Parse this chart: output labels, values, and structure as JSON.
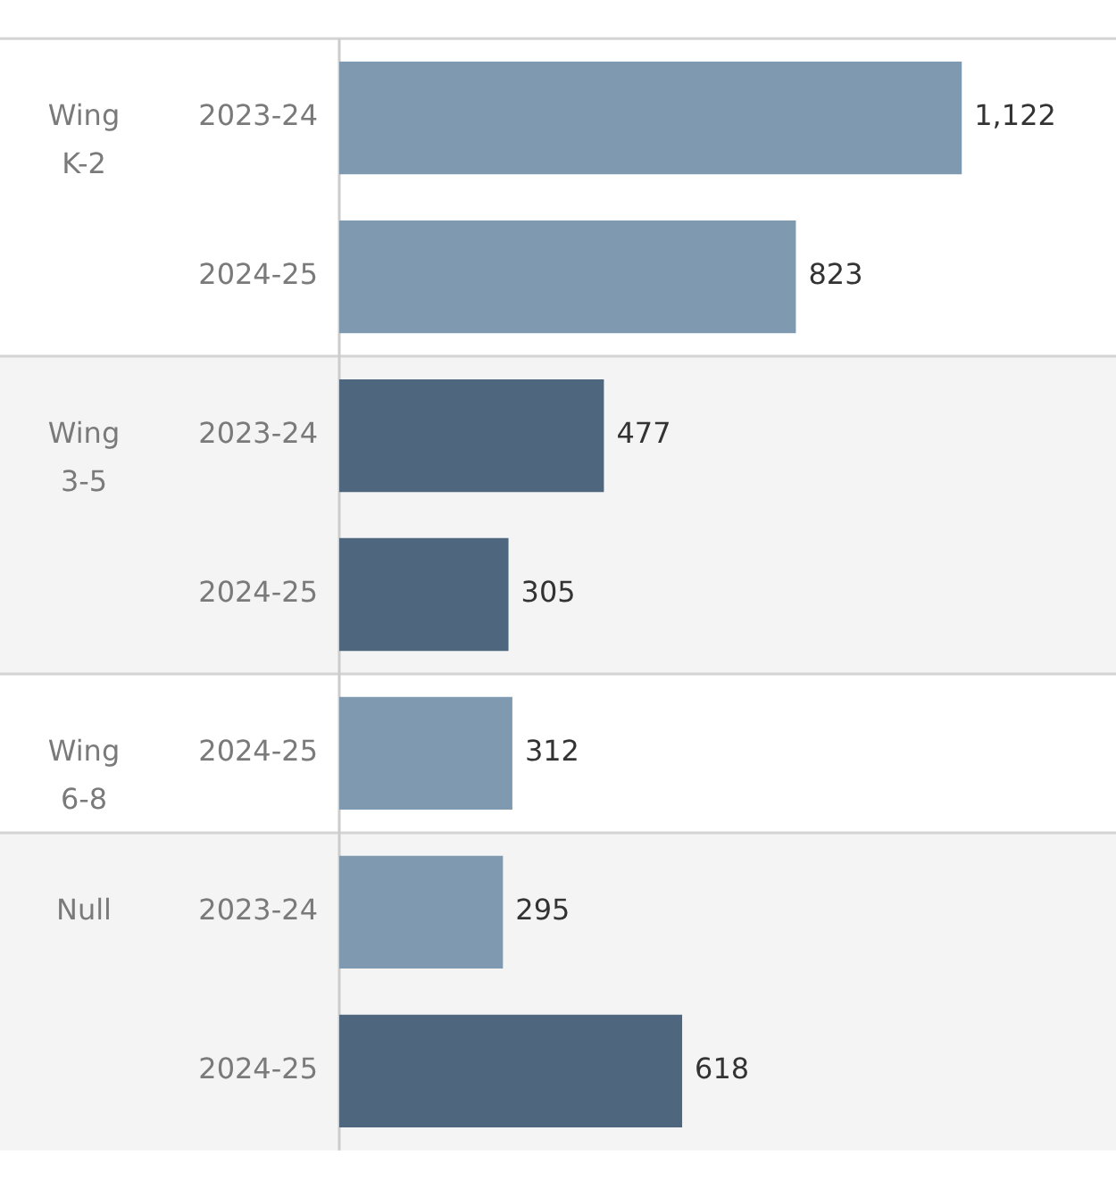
{
  "chart_data": {
    "type": "bar",
    "orientation": "horizontal",
    "categories": [
      "2023-24",
      "2024-25",
      "2023-24",
      "2024-25",
      "2024-25",
      "2023-24",
      "2024-25"
    ],
    "values": [
      1122,
      823,
      477,
      305,
      312,
      295,
      618
    ],
    "colors": [
      "#7f9ab0",
      "#7f9ab0",
      "#4e677f",
      "#4e677f",
      "#7f9ab0",
      "#7f9ab0",
      "#4e677f"
    ],
    "value_labels": [
      "1,122",
      "823",
      "477",
      "305",
      "312",
      "295",
      "618"
    ],
    "annotations": [
      "Wing K-2",
      "Wing 3-5",
      "Wing 6-8",
      "Null"
    ],
    "tick_labels": "y",
    "grid": false,
    "legend": false
  }
}
